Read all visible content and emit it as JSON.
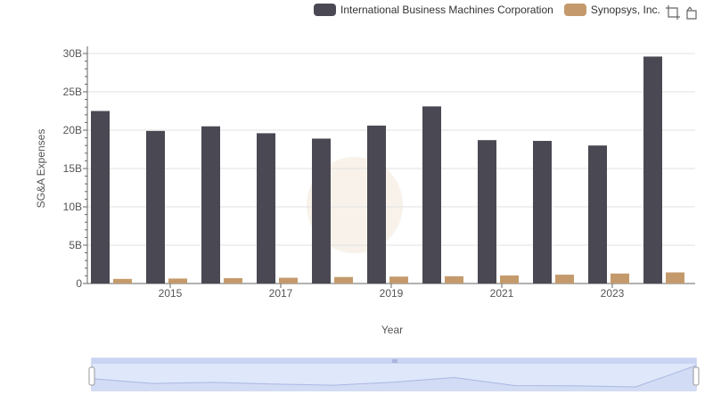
{
  "chart_data": {
    "type": "bar",
    "xlabel": "Year",
    "ylabel": "SG&A Expenses",
    "ylim": [
      0,
      30000000000
    ],
    "yticks": [
      "0",
      "5B",
      "10B",
      "15B",
      "20B",
      "25B",
      "30B"
    ],
    "categories": [
      "2014",
      "2015",
      "2016",
      "2017",
      "2018",
      "2019",
      "2020",
      "2021",
      "2022",
      "2023",
      "2024"
    ],
    "x_tick_labels": [
      "2015",
      "2017",
      "2019",
      "2021",
      "2023"
    ],
    "series": [
      {
        "name": "International Business Machines Corporation",
        "color": "#4a4953",
        "values": [
          22500000000,
          19900000000,
          20500000000,
          19600000000,
          18900000000,
          20600000000,
          23100000000,
          18700000000,
          18600000000,
          18000000000,
          29600000000
        ]
      },
      {
        "name": "Synopsys, Inc.",
        "color": "#c49a6c",
        "values": [
          600000000,
          650000000,
          700000000,
          750000000,
          850000000,
          900000000,
          950000000,
          1050000000,
          1150000000,
          1300000000,
          1450000000
        ]
      }
    ],
    "grid": true,
    "legend_position": "top-right",
    "datazoom": true
  },
  "colors": {
    "ibm": "#4a4953",
    "synopsys": "#c49a6c",
    "grid": "#e0e0e0",
    "zoom_fill": "#dfe7fb",
    "zoom_border": "#aab8e6"
  },
  "toolbox": {
    "icons": [
      "zoom-icon",
      "zoom-reset-icon"
    ]
  }
}
